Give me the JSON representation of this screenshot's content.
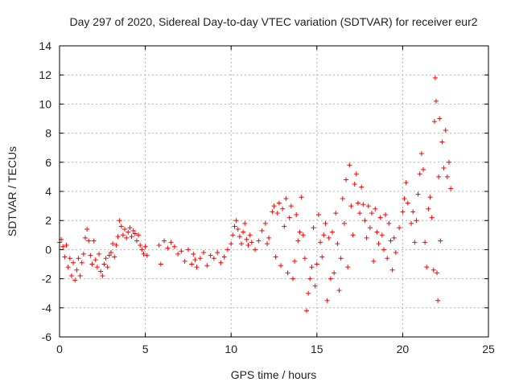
{
  "chart_data": {
    "type": "scatter",
    "title": "Day 297 of 2020, Sidereal Day-to-day VTEC variation (SDTVAR) for receiver eur2",
    "xlabel": "GPS time / hours",
    "ylabel": "SDTVAR / TECUs",
    "xlim": [
      0,
      25
    ],
    "ylim": [
      -6,
      14
    ],
    "xticks": [
      "0",
      "5",
      "10",
      "15",
      "20",
      "25"
    ],
    "yticks": [
      "-6",
      "-4",
      "-2",
      "0",
      "2",
      "4",
      "6",
      "8",
      "10",
      "12",
      "14"
    ],
    "grid": true,
    "marker": "+",
    "series_color": "#ff0000",
    "series": [
      {
        "name": "SDTVAR",
        "points": [
          [
            0.0,
            0.5
          ],
          [
            0.1,
            0.7
          ],
          [
            0.2,
            0.2
          ],
          [
            0.3,
            -0.5
          ],
          [
            0.4,
            0.3
          ],
          [
            0.5,
            -1.2
          ],
          [
            0.6,
            -0.6
          ],
          [
            0.7,
            -1.8
          ],
          [
            0.8,
            -0.9
          ],
          [
            0.9,
            -2.1
          ],
          [
            1.0,
            -1.4
          ],
          [
            1.1,
            -0.6
          ],
          [
            1.2,
            -1.8
          ],
          [
            1.3,
            -0.9
          ],
          [
            1.4,
            -0.3
          ],
          [
            1.5,
            0.8
          ],
          [
            1.6,
            1.4
          ],
          [
            1.7,
            0.6
          ],
          [
            1.8,
            -0.4
          ],
          [
            1.9,
            -1.0
          ],
          [
            2.0,
            0.6
          ],
          [
            2.1,
            -0.7
          ],
          [
            2.2,
            -1.2
          ],
          [
            2.3,
            -0.3
          ],
          [
            2.4,
            -1.5
          ],
          [
            2.5,
            -1.8
          ],
          [
            2.6,
            -1.0
          ],
          [
            2.7,
            -0.6
          ],
          [
            2.8,
            -1.2
          ],
          [
            2.9,
            -0.4
          ],
          [
            3.0,
            -0.2
          ],
          [
            3.1,
            0.4
          ],
          [
            3.2,
            -0.5
          ],
          [
            3.3,
            0.3
          ],
          [
            3.4,
            0.9
          ],
          [
            3.5,
            2.0
          ],
          [
            3.6,
            1.6
          ],
          [
            3.7,
            1.0
          ],
          [
            3.8,
            1.4
          ],
          [
            3.9,
            0.8
          ],
          [
            4.0,
            1.2
          ],
          [
            4.1,
            1.5
          ],
          [
            4.2,
            0.9
          ],
          [
            4.3,
            1.3
          ],
          [
            4.4,
            1.1
          ],
          [
            4.5,
            0.6
          ],
          [
            4.6,
            1.0
          ],
          [
            4.7,
            0.3
          ],
          [
            4.8,
            0.0
          ],
          [
            4.9,
            -0.3
          ],
          [
            5.0,
            0.2
          ],
          [
            5.1,
            -0.4
          ],
          [
            5.8,
            0.3
          ],
          [
            5.9,
            -1.0
          ],
          [
            6.1,
            0.6
          ],
          [
            6.3,
            0.1
          ],
          [
            6.5,
            0.5
          ],
          [
            6.7,
            0.2
          ],
          [
            6.9,
            -0.3
          ],
          [
            7.1,
            -0.1
          ],
          [
            7.3,
            -0.8
          ],
          [
            7.5,
            0.0
          ],
          [
            7.7,
            -1.0
          ],
          [
            7.8,
            -0.3
          ],
          [
            7.9,
            -0.7
          ],
          [
            8.0,
            -1.2
          ],
          [
            8.2,
            -0.6
          ],
          [
            8.4,
            -0.2
          ],
          [
            8.6,
            -1.1
          ],
          [
            8.8,
            -0.4
          ],
          [
            9.0,
            -0.6
          ],
          [
            9.2,
            -0.2
          ],
          [
            9.4,
            -0.9
          ],
          [
            9.6,
            -0.5
          ],
          [
            9.8,
            0.0
          ],
          [
            10.0,
            0.4
          ],
          [
            10.1,
            1.0
          ],
          [
            10.2,
            1.6
          ],
          [
            10.3,
            2.0
          ],
          [
            10.4,
            1.4
          ],
          [
            10.5,
            0.9
          ],
          [
            10.6,
            0.4
          ],
          [
            10.7,
            1.2
          ],
          [
            10.8,
            1.8
          ],
          [
            10.9,
            0.7
          ],
          [
            11.0,
            0.3
          ],
          [
            11.1,
            1.0
          ],
          [
            11.2,
            0.5
          ],
          [
            11.4,
            0.0
          ],
          [
            11.6,
            0.6
          ],
          [
            11.8,
            1.3
          ],
          [
            12.0,
            1.8
          ],
          [
            12.1,
            0.4
          ],
          [
            12.2,
            0.8
          ],
          [
            12.4,
            2.6
          ],
          [
            12.5,
            3.0
          ],
          [
            12.6,
            -0.5
          ],
          [
            12.7,
            2.5
          ],
          [
            12.8,
            3.2
          ],
          [
            12.9,
            -1.1
          ],
          [
            13.0,
            2.8
          ],
          [
            13.1,
            1.6
          ],
          [
            13.2,
            3.5
          ],
          [
            13.3,
            -1.6
          ],
          [
            13.4,
            2.2
          ],
          [
            13.5,
            3.0
          ],
          [
            13.6,
            -2.0
          ],
          [
            13.7,
            -0.8
          ],
          [
            13.8,
            2.4
          ],
          [
            13.9,
            0.6
          ],
          [
            14.0,
            1.2
          ],
          [
            14.1,
            3.6
          ],
          [
            14.2,
            1.0
          ],
          [
            14.3,
            -0.6
          ],
          [
            14.4,
            -4.2
          ],
          [
            14.5,
            -3.0
          ],
          [
            14.6,
            -2.0
          ],
          [
            14.7,
            -1.2
          ],
          [
            14.8,
            1.5
          ],
          [
            14.9,
            -2.5
          ],
          [
            15.0,
            -1.0
          ],
          [
            15.1,
            2.4
          ],
          [
            15.2,
            0.5
          ],
          [
            15.3,
            -0.5
          ],
          [
            15.4,
            1.0
          ],
          [
            15.5,
            1.8
          ],
          [
            15.6,
            -3.5
          ],
          [
            15.7,
            0.8
          ],
          [
            15.8,
            -2.0
          ],
          [
            15.9,
            1.2
          ],
          [
            16.0,
            -1.6
          ],
          [
            16.1,
            2.5
          ],
          [
            16.2,
            0.4
          ],
          [
            16.3,
            -2.8
          ],
          [
            16.4,
            -0.6
          ],
          [
            16.5,
            3.5
          ],
          [
            16.6,
            1.8
          ],
          [
            16.7,
            4.8
          ],
          [
            16.8,
            -1.2
          ],
          [
            16.9,
            5.8
          ],
          [
            17.0,
            3.0
          ],
          [
            17.1,
            1.0
          ],
          [
            17.2,
            4.5
          ],
          [
            17.3,
            5.2
          ],
          [
            17.4,
            3.2
          ],
          [
            17.5,
            2.5
          ],
          [
            17.6,
            4.3
          ],
          [
            17.7,
            3.1
          ],
          [
            17.8,
            2.0
          ],
          [
            17.9,
            0.8
          ],
          [
            18.0,
            3.0
          ],
          [
            18.1,
            1.5
          ],
          [
            18.2,
            2.5
          ],
          [
            18.3,
            -0.8
          ],
          [
            18.4,
            2.8
          ],
          [
            18.5,
            1.2
          ],
          [
            18.6,
            0.4
          ],
          [
            18.7,
            2.2
          ],
          [
            18.8,
            1.0
          ],
          [
            18.9,
            0.0
          ],
          [
            19.0,
            2.4
          ],
          [
            19.1,
            -0.6
          ],
          [
            19.2,
            1.8
          ],
          [
            19.3,
            0.6
          ],
          [
            19.4,
            -1.4
          ],
          [
            19.5,
            0.8
          ],
          [
            19.6,
            -0.2
          ],
          [
            19.8,
            1.5
          ],
          [
            20.0,
            2.6
          ],
          [
            20.1,
            3.5
          ],
          [
            20.2,
            4.6
          ],
          [
            20.3,
            3.2
          ],
          [
            20.5,
            1.8
          ],
          [
            20.6,
            2.6
          ],
          [
            20.7,
            0.5
          ],
          [
            20.8,
            2.0
          ],
          [
            20.9,
            3.8
          ],
          [
            21.0,
            5.2
          ],
          [
            21.1,
            6.6
          ],
          [
            21.2,
            5.5
          ],
          [
            21.3,
            0.5
          ],
          [
            21.4,
            -1.2
          ],
          [
            21.5,
            2.8
          ],
          [
            21.6,
            3.6
          ],
          [
            21.7,
            2.2
          ],
          [
            21.8,
            -1.4
          ],
          [
            21.85,
            8.8
          ],
          [
            21.9,
            11.8
          ],
          [
            21.95,
            10.2
          ],
          [
            22.0,
            -1.6
          ],
          [
            22.05,
            -3.5
          ],
          [
            22.1,
            5.0
          ],
          [
            22.15,
            9.0
          ],
          [
            22.2,
            0.6
          ],
          [
            22.3,
            7.4
          ],
          [
            22.4,
            5.6
          ],
          [
            22.5,
            8.2
          ],
          [
            22.6,
            5.0
          ],
          [
            22.7,
            6.0
          ],
          [
            22.8,
            4.2
          ]
        ]
      }
    ]
  }
}
